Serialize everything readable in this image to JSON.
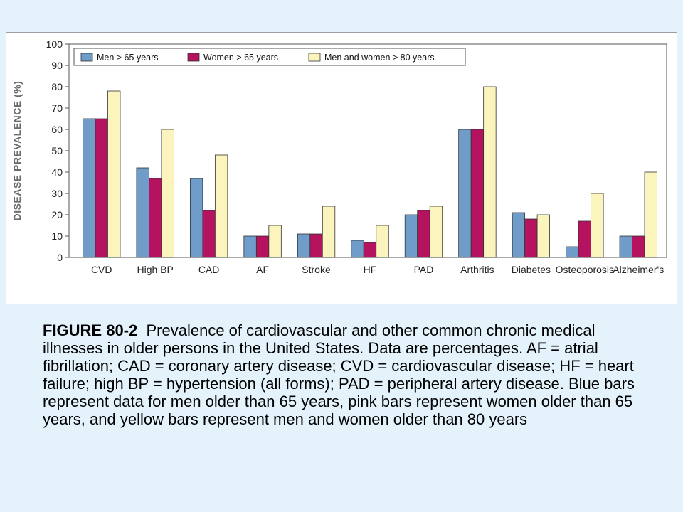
{
  "chart_data": {
    "type": "bar",
    "ylabel": "DISEASE PREVALENCE (%)",
    "xlabel": "",
    "ylim": [
      0,
      100
    ],
    "yticks": [
      0,
      10,
      20,
      30,
      40,
      50,
      60,
      70,
      80,
      90,
      100
    ],
    "grid": false,
    "legend_position": "top",
    "categories": [
      "CVD",
      "High BP",
      "CAD",
      "AF",
      "Stroke",
      "HF",
      "PAD",
      "Arthritis",
      "Diabetes",
      "Osteoporosis",
      "Alzheimer's"
    ],
    "series": [
      {
        "name": "Men > 65 years",
        "color": "#6f9cc9",
        "values": [
          65,
          42,
          37,
          10,
          11,
          8,
          20,
          60,
          21,
          5,
          10
        ]
      },
      {
        "name": "Women > 65 years",
        "color": "#b5135f",
        "values": [
          65,
          37,
          22,
          10,
          11,
          7,
          22,
          60,
          18,
          17,
          10
        ]
      },
      {
        "name": "Men and women > 80 years",
        "color": "#fbf5bd",
        "values": [
          78,
          60,
          48,
          15,
          24,
          15,
          24,
          80,
          20,
          30,
          40
        ]
      }
    ]
  },
  "caption": {
    "label": "FIGURE 80-2",
    "text": "Prevalence of cardiovascular and other common chronic medical illnesses in older persons in the United States. Data are percentages. AF = atrial fibrillation; CAD = coronary artery disease; CVD = cardiovascular disease; HF = heart failure; high BP = hypertension (all forms); PAD = peripheral artery disease. Blue bars represent data for men older than 65 years, pink bars represent women older than 65 years, and yellow bars represent men and women older than 80 years"
  }
}
